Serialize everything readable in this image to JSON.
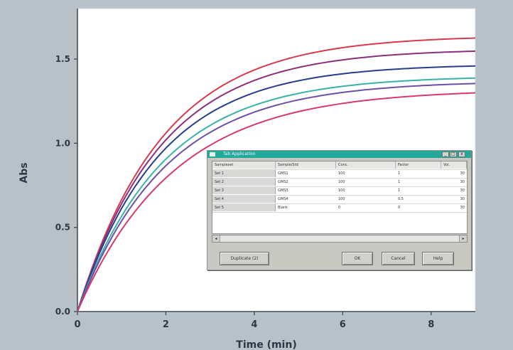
{
  "chart_data": {
    "type": "line",
    "xlabel": "Time (min)",
    "ylabel": "Abs",
    "xlim": [
      0,
      9
    ],
    "ylim": [
      0,
      1.8
    ],
    "x_ticks": [
      "0",
      "2",
      "4",
      "6",
      "8"
    ],
    "y_ticks": [
      "0.0",
      "0.5",
      "1.0",
      "1.5"
    ],
    "series": [
      {
        "color": "#d63a4d",
        "plateau": 1.64,
        "k": 0.52
      },
      {
        "color": "#8b2f7d",
        "plateau": 1.56,
        "k": 0.53
      },
      {
        "color": "#283d8d",
        "plateau": 1.47,
        "k": 0.54
      },
      {
        "color": "#38b3a8",
        "plateau": 1.4,
        "k": 0.52
      },
      {
        "color": "#6d4fa6",
        "plateau": 1.37,
        "k": 0.5
      },
      {
        "color": "#d63a6d",
        "plateau": 1.32,
        "k": 0.46
      }
    ],
    "grid": false,
    "legend": "none"
  },
  "dialog": {
    "title": "Tab Application",
    "table": {
      "headers": [
        "Sampleset",
        "Sample/Std",
        "Conc.",
        "Factor",
        "Vol."
      ],
      "rows": [
        [
          "Set 1",
          "GMS1",
          "100",
          "1",
          "30"
        ],
        [
          "Set 2",
          "GMS2",
          "100",
          "1",
          "30"
        ],
        [
          "Set 3",
          "GMS3",
          "100",
          "1",
          "30"
        ],
        [
          "Set 4",
          "GMS4",
          "100",
          "0.5",
          "30"
        ],
        [
          "Set 5",
          "Blank",
          "0",
          "0",
          "30"
        ]
      ]
    },
    "buttons": {
      "left": "Duplicate (2)",
      "ok": "OK",
      "cancel": "Cancel",
      "help": "Help"
    },
    "scroll_left": "◂",
    "scroll_right": "▸",
    "min_label": "_",
    "max_label": "□",
    "close_label": "x"
  }
}
